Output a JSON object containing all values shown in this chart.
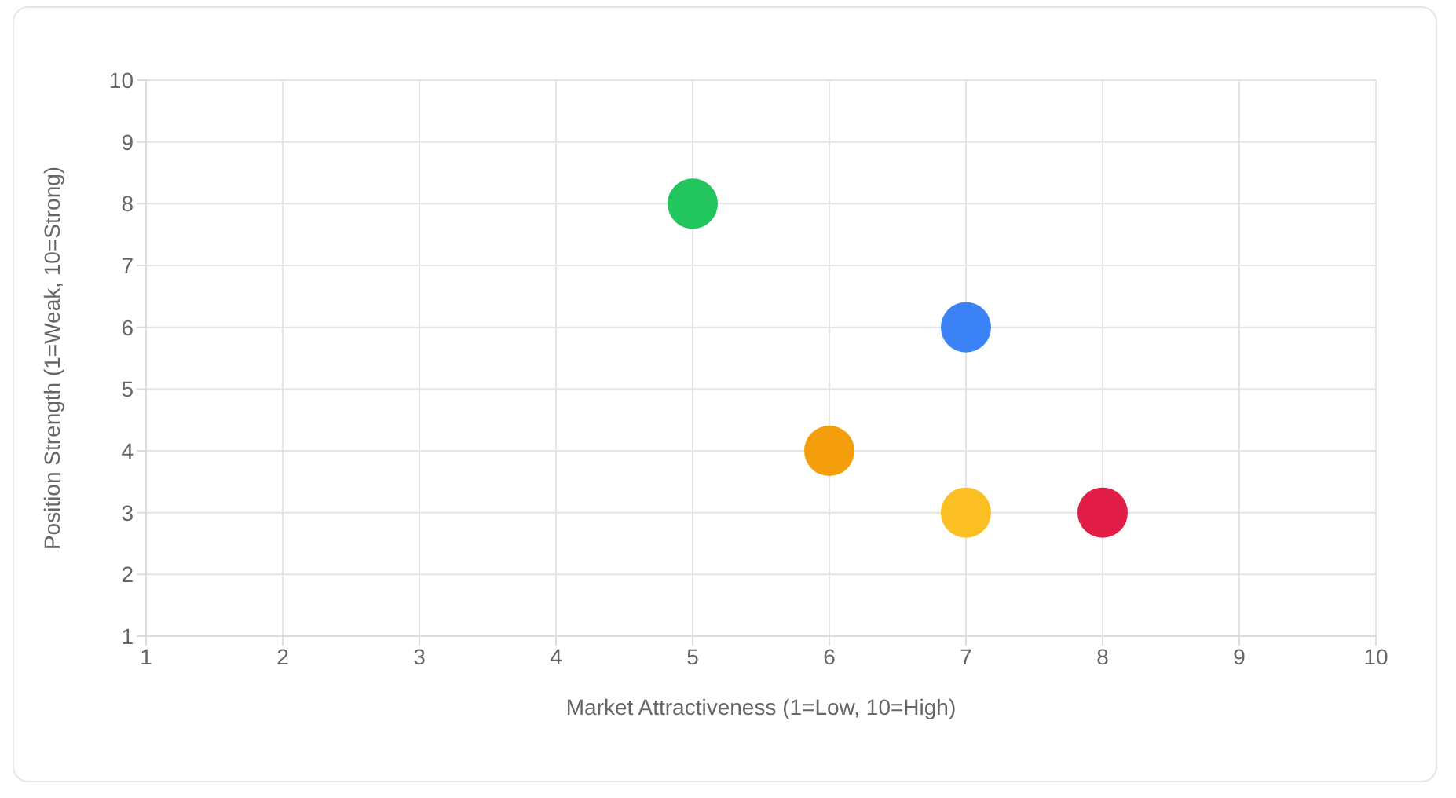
{
  "chart_data": {
    "type": "scatter",
    "xlabel": "Market Attractiveness (1=Low, 10=High)",
    "ylabel": "Position Strength (1=Weak, 10=Strong)",
    "x": [
      5,
      7,
      6,
      7,
      8
    ],
    "values": [
      8,
      6,
      4,
      3,
      3
    ],
    "colors": [
      "#22c55e",
      "#3b82f6",
      "#f59e0b",
      "#fbbf24",
      "#e11d48"
    ],
    "xlim": [
      1,
      10
    ],
    "xticks": [
      1,
      2,
      3,
      4,
      5,
      6,
      7,
      8,
      9,
      10
    ],
    "ylim": [
      1,
      10
    ],
    "yticks": [
      1,
      2,
      3,
      4,
      5,
      6,
      7,
      8,
      9,
      10
    ],
    "grid": true,
    "marker": "circle"
  }
}
